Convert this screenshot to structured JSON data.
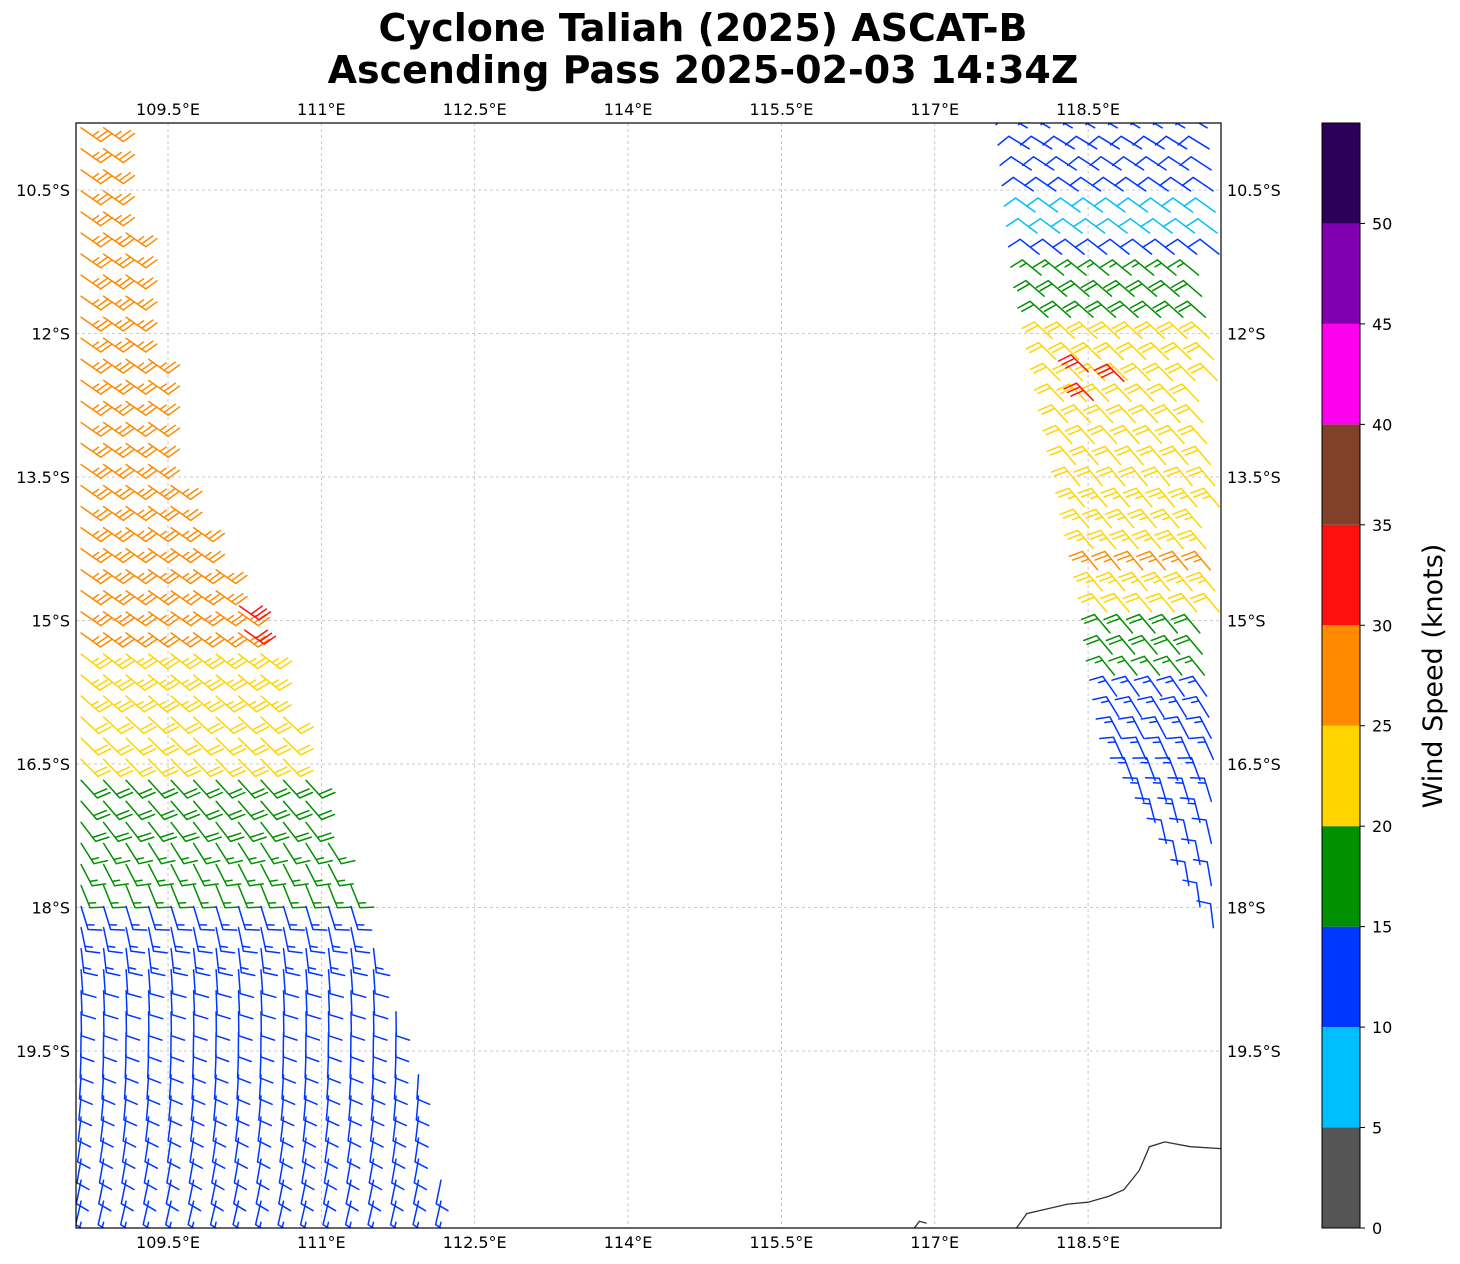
{
  "title": {
    "line1": "Cyclone Taliah (2025) ASCAT-B",
    "line2": "Ascending Pass 2025-02-03 14:34Z"
  },
  "map": {
    "lon_range": [
      108.6,
      119.8
    ],
    "lat_range": [
      -21.35,
      -9.8
    ],
    "lon_ticks": [
      {
        "value": 109.5,
        "label": "109.5°E"
      },
      {
        "value": 111,
        "label": "111°E"
      },
      {
        "value": 112.5,
        "label": "112.5°E"
      },
      {
        "value": 114,
        "label": "114°E"
      },
      {
        "value": 115.5,
        "label": "115.5°E"
      },
      {
        "value": 117,
        "label": "117°E"
      },
      {
        "value": 118.5,
        "label": "118.5°E"
      }
    ],
    "lat_ticks": [
      {
        "value": -10.5,
        "label": "10.5°S"
      },
      {
        "value": -12,
        "label": "12°S"
      },
      {
        "value": -13.5,
        "label": "13.5°S"
      },
      {
        "value": -15,
        "label": "15°S"
      },
      {
        "value": -16.5,
        "label": "16.5°S"
      },
      {
        "value": -18,
        "label": "18°S"
      },
      {
        "value": -19.5,
        "label": "19.5°S"
      }
    ],
    "grid": true,
    "grid_style": "dashed",
    "coastline_color": "#333333",
    "coastline": [
      [
        117.8,
        -21.35
      ],
      [
        117.9,
        -21.2
      ],
      [
        118.1,
        -21.15
      ],
      [
        118.3,
        -21.1
      ],
      [
        118.5,
        -21.08
      ],
      [
        118.7,
        -21.02
      ],
      [
        118.85,
        -20.95
      ],
      [
        119.0,
        -20.75
      ],
      [
        119.1,
        -20.5
      ],
      [
        119.25,
        -20.45
      ],
      [
        119.5,
        -20.5
      ],
      [
        119.8,
        -20.52
      ]
    ],
    "coast_fragment": [
      [
        116.8,
        -21.35
      ],
      [
        116.85,
        -21.28
      ],
      [
        116.92,
        -21.3
      ]
    ]
  },
  "colorbar": {
    "label": "Wind Speed (knots)",
    "ticks": [
      "0",
      "5",
      "10",
      "15",
      "20",
      "25",
      "30",
      "35",
      "40",
      "45",
      "50"
    ],
    "bins": [
      {
        "min": 0,
        "max": 5,
        "color": "#555555"
      },
      {
        "min": 5,
        "max": 10,
        "color": "#00bfff"
      },
      {
        "min": 10,
        "max": 15,
        "color": "#0037ff"
      },
      {
        "min": 15,
        "max": 20,
        "color": "#009000"
      },
      {
        "min": 20,
        "max": 25,
        "color": "#ffd400"
      },
      {
        "min": 25,
        "max": 30,
        "color": "#ff8a00"
      },
      {
        "min": 30,
        "max": 35,
        "color": "#ff1010"
      },
      {
        "min": 35,
        "max": 40,
        "color": "#80402a"
      },
      {
        "min": 40,
        "max": 45,
        "color": "#ff00ee"
      },
      {
        "min": 45,
        "max": 50,
        "color": "#8000b0"
      },
      {
        "min": 50,
        "max": 55,
        "color": "#2b005a"
      }
    ]
  },
  "wind_swaths": {
    "west": {
      "lon_min": 108.6,
      "east_edge": [
        [
          -9.8,
          108.95
        ],
        [
          -13.5,
          109.5
        ],
        [
          -15.5,
          110.5
        ],
        [
          -17.5,
          111.2
        ],
        [
          -19.5,
          111.9
        ],
        [
          -21.35,
          112.3
        ]
      ],
      "direction_from_deg": [
        [
          -9.8,
          125
        ],
        [
          -15.0,
          125
        ],
        [
          -17.0,
          140
        ],
        [
          -18.5,
          175
        ],
        [
          -21.35,
          195
        ]
      ],
      "speed_kt": [
        [
          -9.8,
          27
        ],
        [
          -14.8,
          27
        ],
        [
          -15.6,
          23
        ],
        [
          -16.4,
          21
        ],
        [
          -17.0,
          18
        ],
        [
          -18.2,
          14
        ],
        [
          -18.6,
          12
        ],
        [
          -21.35,
          11
        ]
      ],
      "high_wind_points": [
        {
          "lat": -14.85,
          "lon": 110.2,
          "speed_kt": 32
        },
        {
          "lat": -15.1,
          "lon": 110.25,
          "speed_kt": 32
        }
      ]
    },
    "east": {
      "lon_max": 119.8,
      "west_edge": [
        [
          -9.8,
          117.8
        ],
        [
          -11.5,
          117.95
        ],
        [
          -13.5,
          118.3
        ],
        [
          -15.0,
          118.6
        ],
        [
          -16.5,
          118.75
        ],
        [
          -18.0,
          119.5
        ],
        [
          -18.5,
          119.8
        ]
      ],
      "direction_from_deg": [
        [
          -9.8,
          300
        ],
        [
          -11.5,
          310
        ],
        [
          -13.5,
          320
        ],
        [
          -15.5,
          320
        ],
        [
          -17.0,
          345
        ],
        [
          -18.5,
          355
        ]
      ],
      "speed_kt": [
        [
          -9.8,
          12
        ],
        [
          -11.0,
          9
        ],
        [
          -11.5,
          17
        ],
        [
          -12.2,
          22
        ],
        [
          -13.6,
          22
        ],
        [
          -14.5,
          26
        ],
        [
          -15.0,
          20
        ],
        [
          -15.5,
          17
        ],
        [
          -16.0,
          13
        ],
        [
          -18.5,
          12
        ]
      ],
      "high_wind_points": [
        {
          "lat": -12.4,
          "lon": 118.5,
          "speed_kt": 32
        },
        {
          "lat": -12.5,
          "lon": 118.85,
          "speed_kt": 32
        },
        {
          "lat": -12.7,
          "lon": 118.55,
          "speed_kt": 31
        }
      ]
    }
  }
}
